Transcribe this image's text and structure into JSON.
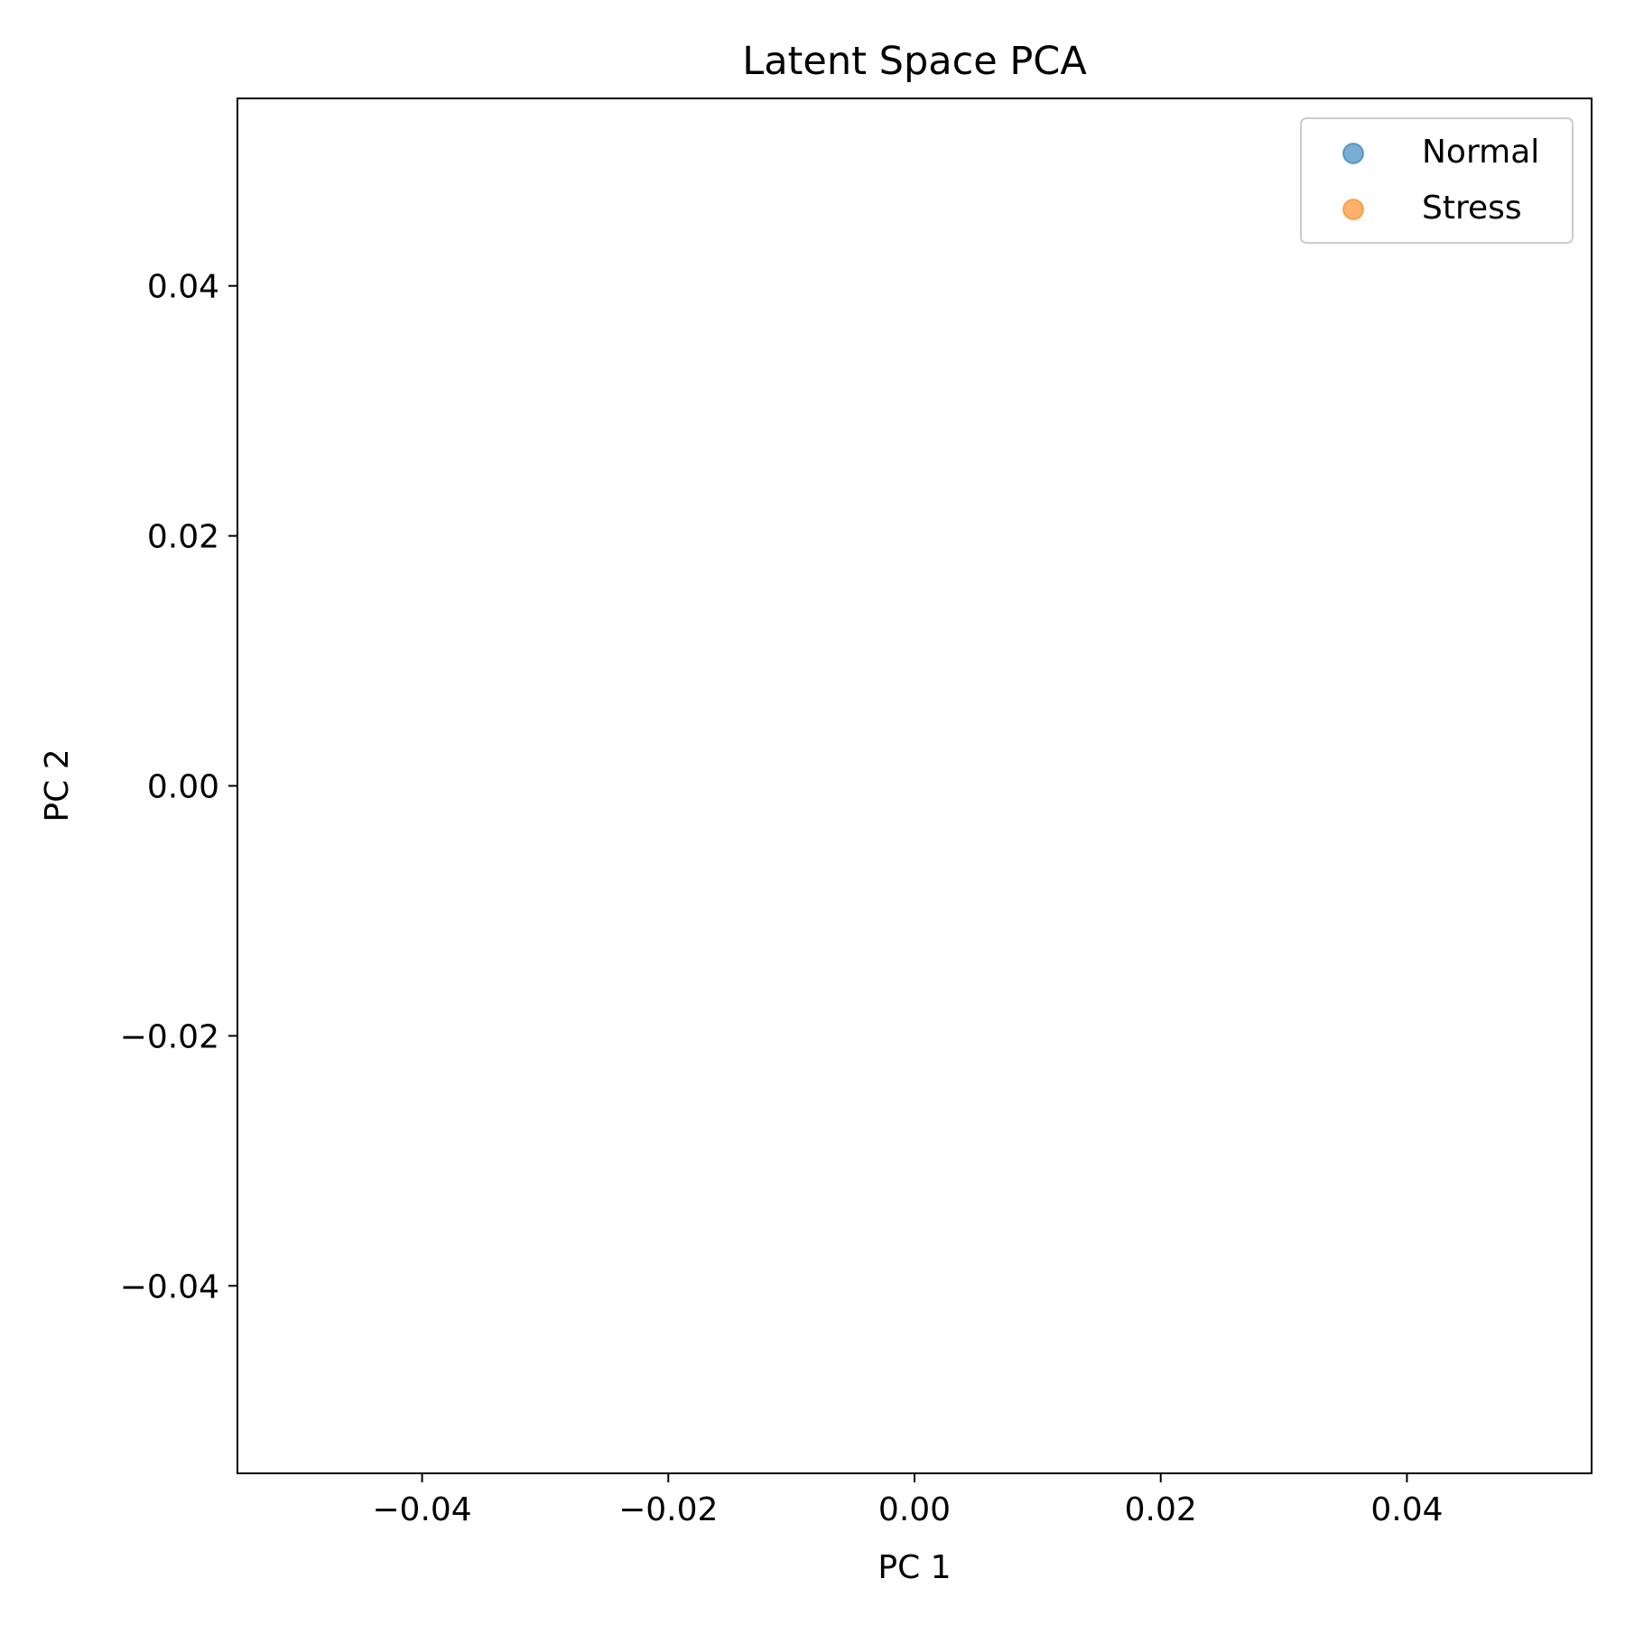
{
  "chart_data": {
    "type": "scatter",
    "title": "Latent Space PCA",
    "xlabel": "PC 1",
    "ylabel": "PC 2",
    "xlim": [
      -0.055,
      0.055
    ],
    "ylim": [
      -0.055,
      0.055
    ],
    "xticks": [
      -0.04,
      -0.02,
      0.0,
      0.02,
      0.04
    ],
    "yticks": [
      -0.04,
      -0.02,
      0.0,
      0.02,
      0.04
    ],
    "xtick_labels": [
      "−0.04",
      "−0.02",
      "0.00",
      "0.02",
      "0.04"
    ],
    "ytick_labels": [
      "−0.04",
      "−0.02",
      "0.00",
      "0.02",
      "0.04"
    ],
    "grid": false,
    "legend_position": "top-right",
    "series": [
      {
        "name": "Normal",
        "color": "#1f77b4",
        "alpha": 0.6,
        "points": []
      },
      {
        "name": "Stress",
        "color": "#ff7f0e",
        "alpha": 0.6,
        "points": []
      }
    ]
  }
}
